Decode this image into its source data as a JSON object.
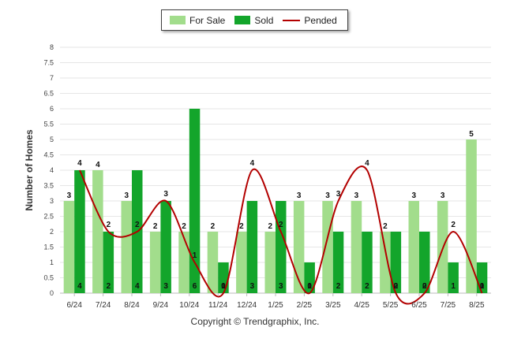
{
  "legend": {
    "for_sale": "For Sale",
    "sold": "Sold",
    "pended": "Pended"
  },
  "colors": {
    "for_sale": "#a2dd8c",
    "sold": "#13a52b",
    "pended": "#b30000"
  },
  "copyright": "Copyright © Trendgraphix, Inc.",
  "chart_data": {
    "type": "bar",
    "ylabel": "Number of Homes",
    "ylim": [
      0,
      8
    ],
    "yticks": [
      "0",
      "0.5",
      "1",
      "1.5",
      "2",
      "2.5",
      "3",
      "3.5",
      "4",
      "4.5",
      "5",
      "5.5",
      "6",
      "6.5",
      "7",
      "7.5",
      "8"
    ],
    "categories": [
      "6/24",
      "7/24",
      "8/24",
      "9/24",
      "10/24",
      "11/24",
      "12/24",
      "1/25",
      "2/25",
      "3/25",
      "4/25",
      "5/25",
      "6/25",
      "7/25",
      "8/25"
    ],
    "grid": true,
    "legend_position": "top-center",
    "series": [
      {
        "name": "For Sale",
        "type": "bar",
        "values": [
          3,
          4,
          3,
          2,
          2,
          2,
          2,
          2,
          3,
          3,
          3,
          2,
          3,
          3,
          5
        ]
      },
      {
        "name": "Sold",
        "type": "bar",
        "values": [
          4,
          2,
          4,
          3,
          6,
          1,
          3,
          3,
          1,
          2,
          2,
          2,
          2,
          1,
          1
        ]
      },
      {
        "name": "Pended",
        "type": "line",
        "values": [
          4,
          2,
          2,
          3,
          1,
          0,
          4,
          2,
          0,
          3,
          4,
          0,
          0,
          2,
          0
        ]
      }
    ]
  }
}
